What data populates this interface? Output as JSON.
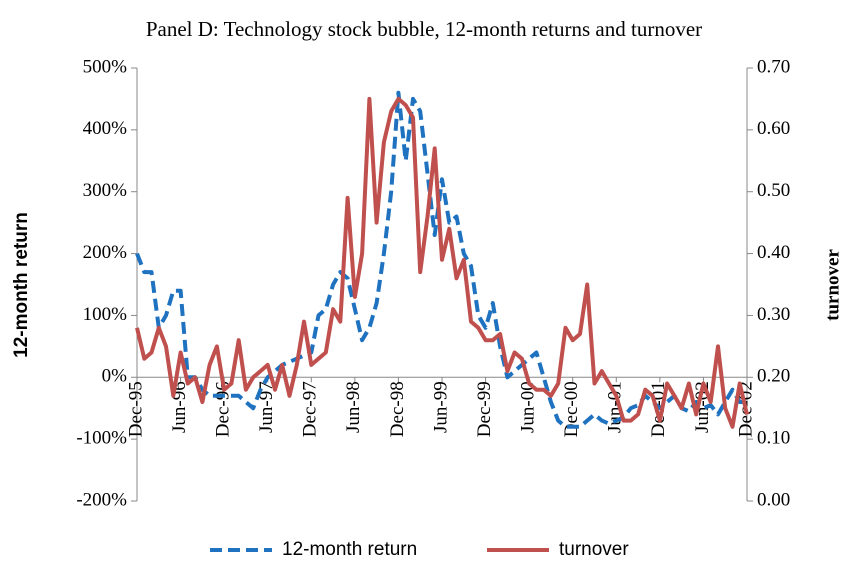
{
  "chart_data": {
    "type": "line",
    "title": "Panel D: Technology stock bubble, 12-month returns and turnover",
    "y_label": "12-month return",
    "y2_label": "turnover",
    "categories": [
      "Dec-95",
      null,
      null,
      null,
      null,
      null,
      "Jun-96",
      null,
      null,
      null,
      null,
      null,
      "Dec-96",
      null,
      null,
      null,
      null,
      null,
      "Jun-97",
      null,
      null,
      null,
      null,
      null,
      "Dec-97",
      null,
      null,
      null,
      null,
      null,
      "Jun-98",
      null,
      null,
      null,
      null,
      null,
      "Dec-98",
      null,
      null,
      null,
      null,
      null,
      "Jun-99",
      null,
      null,
      null,
      null,
      null,
      "Dec-99",
      null,
      null,
      null,
      null,
      null,
      "Jun-00",
      null,
      null,
      null,
      null,
      null,
      "Dec-00",
      null,
      null,
      null,
      null,
      null,
      "Jun-01",
      null,
      null,
      null,
      null,
      null,
      "Dec-01",
      null,
      null,
      null,
      null,
      null,
      "Jun-02",
      null,
      null,
      null,
      null,
      null,
      "Dec-02"
    ],
    "series": [
      {
        "name": "12-month return",
        "color": "#1f72c0",
        "dash": true,
        "values": [
          200,
          170,
          170,
          80,
          100,
          140,
          140,
          0,
          0,
          -20,
          -30,
          -30,
          -30,
          -30,
          -30,
          -40,
          -50,
          -20,
          0,
          10,
          20,
          25,
          30,
          35,
          40,
          100,
          110,
          150,
          170,
          160,
          110,
          60,
          80,
          120,
          200,
          300,
          460,
          350,
          450,
          430,
          330,
          230,
          320,
          250,
          260,
          200,
          180,
          100,
          80,
          120,
          50,
          0,
          10,
          20,
          30,
          40,
          0,
          -40,
          -70,
          -80,
          -80,
          -80,
          -70,
          -60,
          -70,
          -75,
          -70,
          -65,
          -50,
          -45,
          -30,
          -40,
          -50,
          -40,
          -30,
          -50,
          -55,
          -40,
          -50,
          -45,
          -60,
          -40,
          -20,
          -40,
          -40
        ]
      },
      {
        "name": "turnover",
        "color": "#c0504d",
        "axis": "y2",
        "values": [
          0.28,
          0.23,
          0.24,
          0.28,
          0.25,
          0.17,
          0.24,
          0.19,
          0.2,
          0.16,
          0.22,
          0.25,
          0.18,
          0.19,
          0.26,
          0.18,
          0.2,
          0.21,
          0.22,
          0.18,
          0.22,
          0.17,
          0.22,
          0.29,
          0.22,
          0.23,
          0.24,
          0.31,
          0.29,
          0.49,
          0.33,
          0.4,
          0.65,
          0.45,
          0.58,
          0.63,
          0.65,
          0.64,
          0.62,
          0.37,
          0.46,
          0.57,
          0.39,
          0.44,
          0.36,
          0.39,
          0.29,
          0.28,
          0.26,
          0.26,
          0.27,
          0.21,
          0.24,
          0.23,
          0.19,
          0.18,
          0.18,
          0.17,
          0.19,
          0.28,
          0.26,
          0.27,
          0.35,
          0.19,
          0.21,
          0.19,
          0.17,
          0.13,
          0.13,
          0.14,
          0.18,
          0.17,
          0.13,
          0.19,
          0.17,
          0.15,
          0.19,
          0.14,
          0.19,
          0.16,
          0.25,
          0.15,
          0.12,
          0.19,
          0.14
        ]
      }
    ],
    "ylim": [
      -200,
      500
    ],
    "yticks": [
      {
        "value": -200,
        "label": "-200%"
      },
      {
        "value": -100,
        "label": "-100%"
      },
      {
        "value": 0,
        "label": "0%"
      },
      {
        "value": 100,
        "label": "100%"
      },
      {
        "value": 200,
        "label": "200%"
      },
      {
        "value": 300,
        "label": "300%"
      },
      {
        "value": 400,
        "label": "400%"
      },
      {
        "value": 500,
        "label": "500%"
      }
    ],
    "y2lim": [
      0,
      0.7
    ],
    "y2ticks": [
      {
        "value": 0,
        "label": "0.00"
      },
      {
        "value": 0.1,
        "label": "0.10"
      },
      {
        "value": 0.2,
        "label": "0.20"
      },
      {
        "value": 0.3,
        "label": "0.30"
      },
      {
        "value": 0.4,
        "label": "0.40"
      },
      {
        "value": 0.5,
        "label": "0.50"
      },
      {
        "value": 0.6,
        "label": "0.60"
      },
      {
        "value": 0.7,
        "label": "0.70"
      }
    ],
    "legend": "bottom"
  }
}
